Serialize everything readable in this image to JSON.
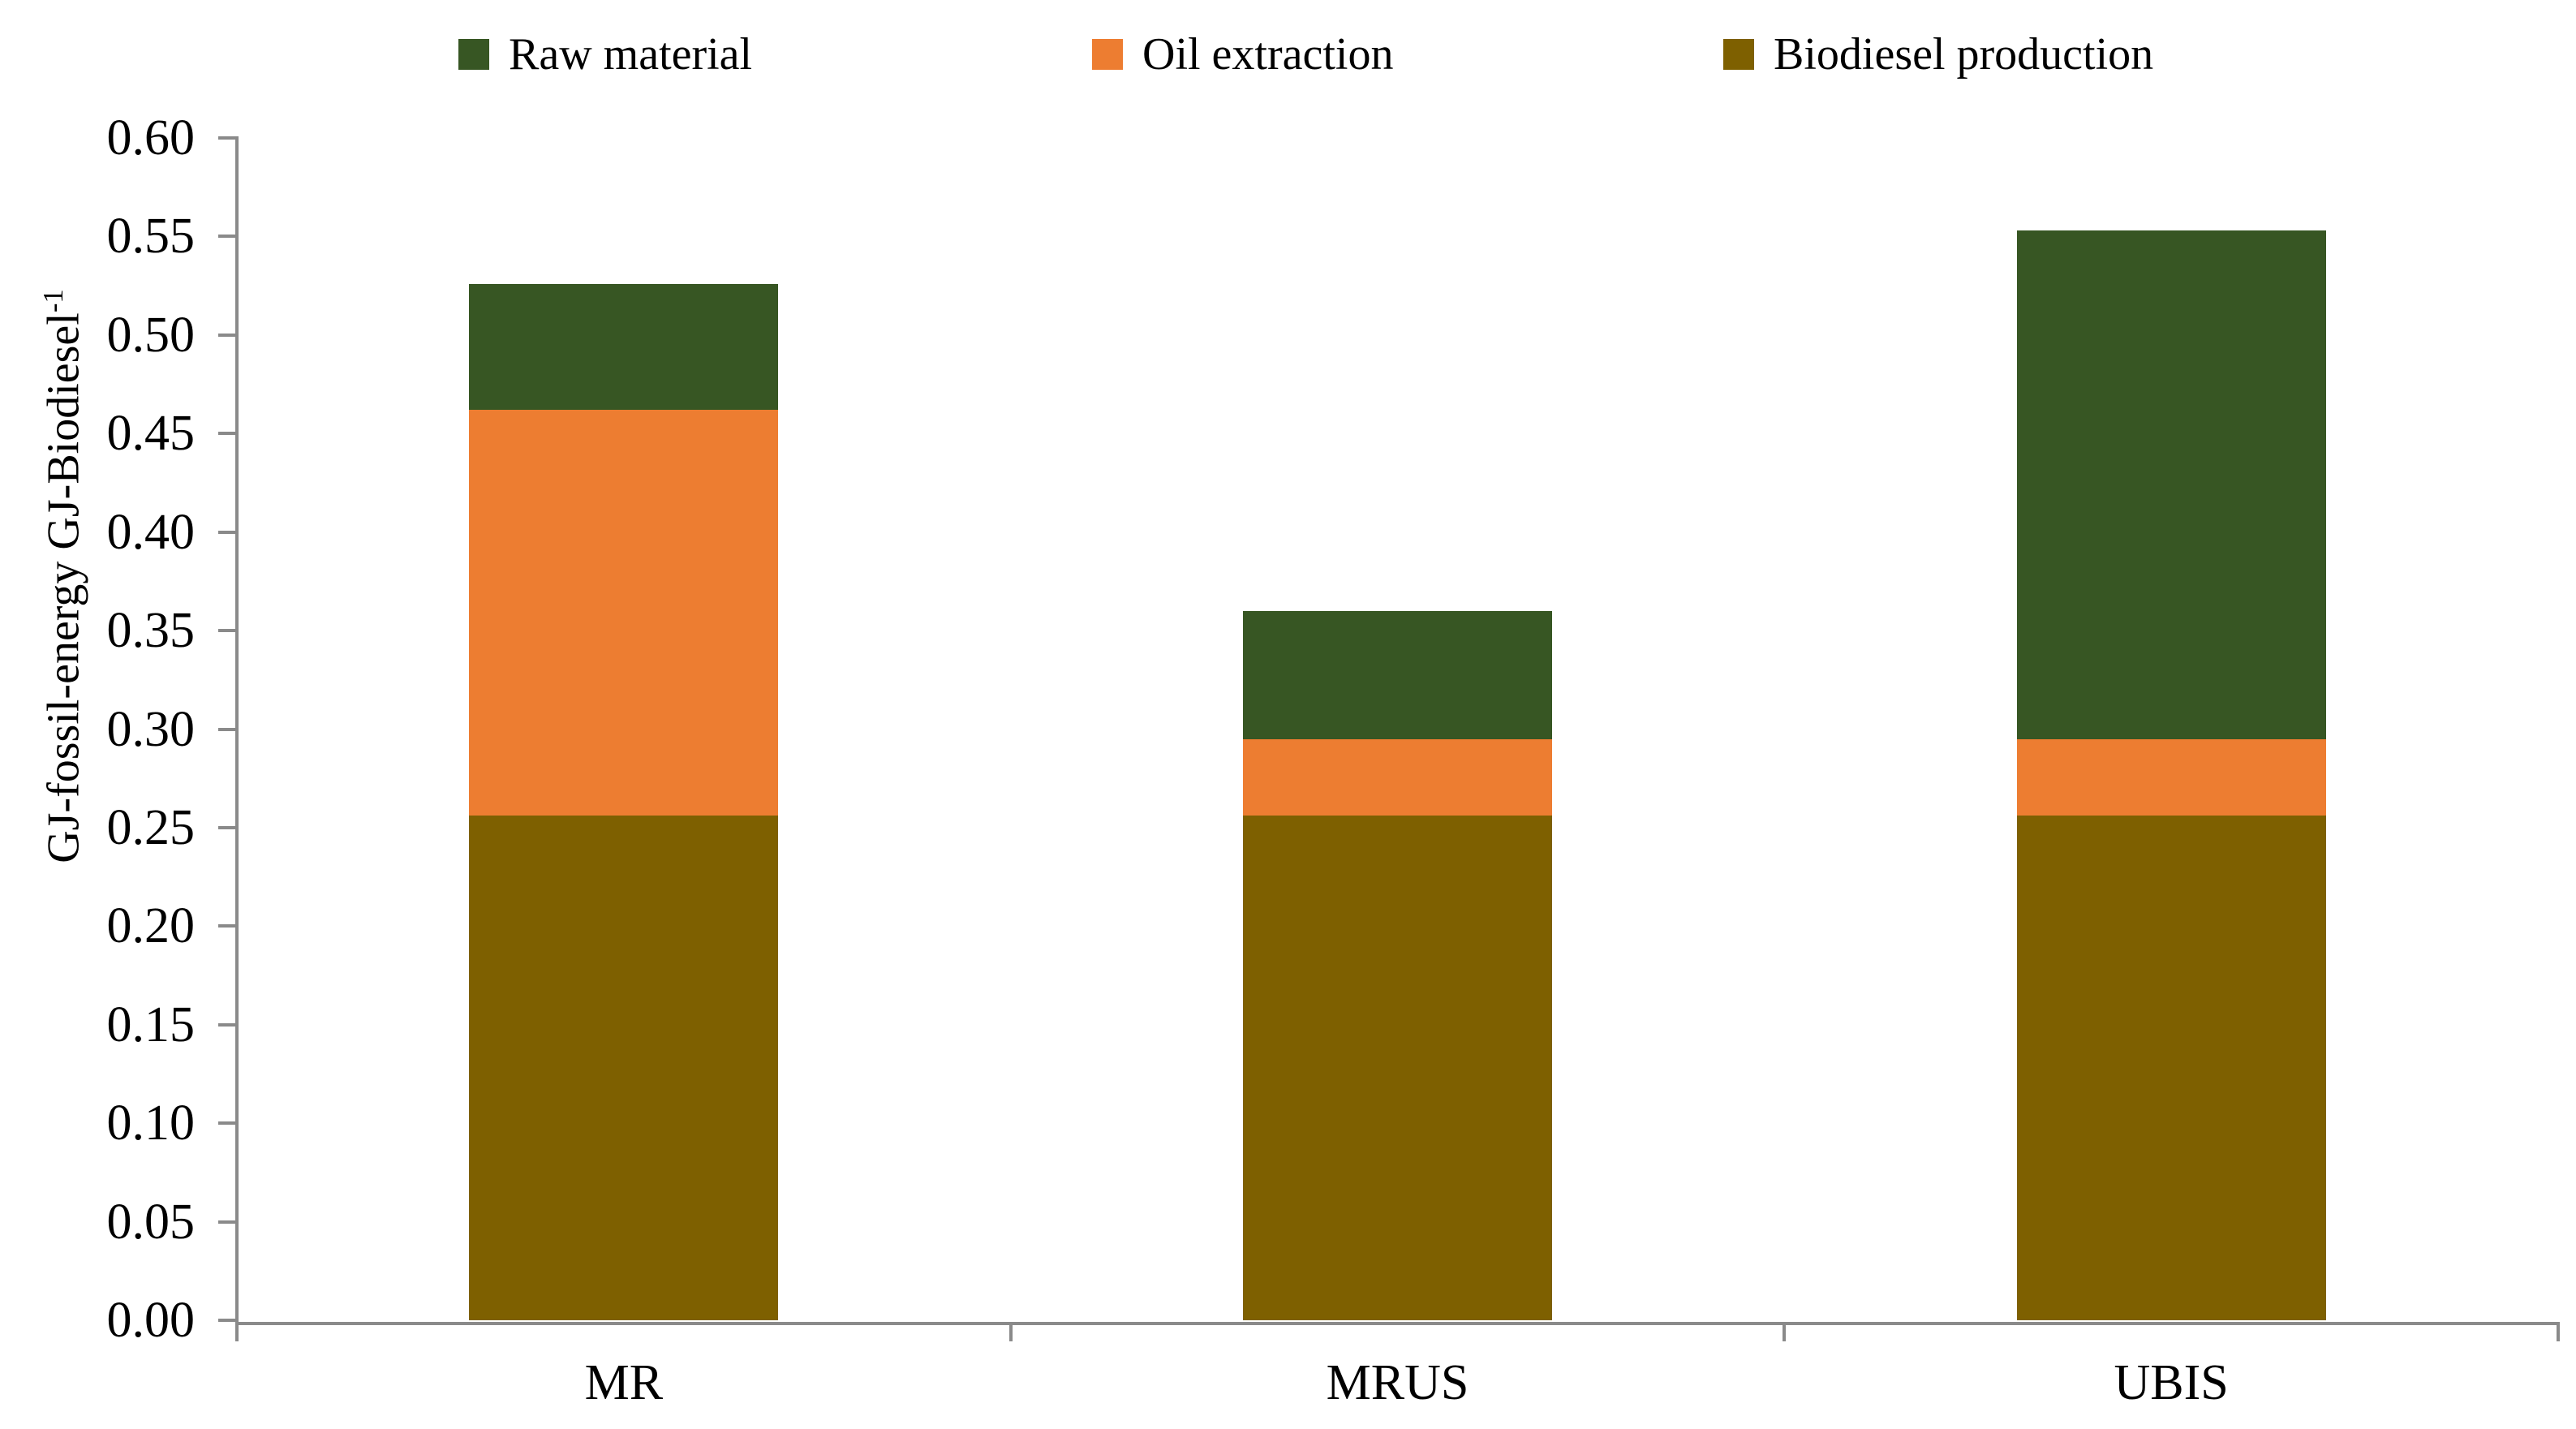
{
  "legend": {
    "items": [
      {
        "label": "Raw material",
        "color": "#375623"
      },
      {
        "label": "Oil extraction",
        "color": "#ED7D31"
      },
      {
        "label": "Biodiesel production",
        "color": "#7E6000"
      }
    ]
  },
  "chart_data": {
    "type": "bar",
    "stacked": true,
    "stack_order": "bottom-to-top",
    "categories": [
      "MR",
      "MRUS",
      "UBIS"
    ],
    "series": [
      {
        "name": "Biodiesel production",
        "color": "#7E6000",
        "values": [
          0.256,
          0.256,
          0.256
        ]
      },
      {
        "name": "Oil extraction",
        "color": "#ED7D31",
        "values": [
          0.206,
          0.039,
          0.039
        ]
      },
      {
        "name": "Raw material",
        "color": "#375623",
        "values": [
          0.064,
          0.065,
          0.258
        ]
      }
    ],
    "title": "",
    "xlabel": "",
    "ylabel": "GJ-fossil-energy GJ-Biodiesel",
    "ylabel_superscript": "-1",
    "ylim": [
      0,
      0.6
    ],
    "ytick_step": 0.05,
    "ytick_labels": [
      "0.00",
      "0.05",
      "0.10",
      "0.15",
      "0.20",
      "0.25",
      "0.30",
      "0.35",
      "0.40",
      "0.45",
      "0.50",
      "0.55",
      "0.60"
    ],
    "grid": false,
    "legend_position": "top",
    "axis_color": "#8A8A8A",
    "text_color": "#000000"
  }
}
